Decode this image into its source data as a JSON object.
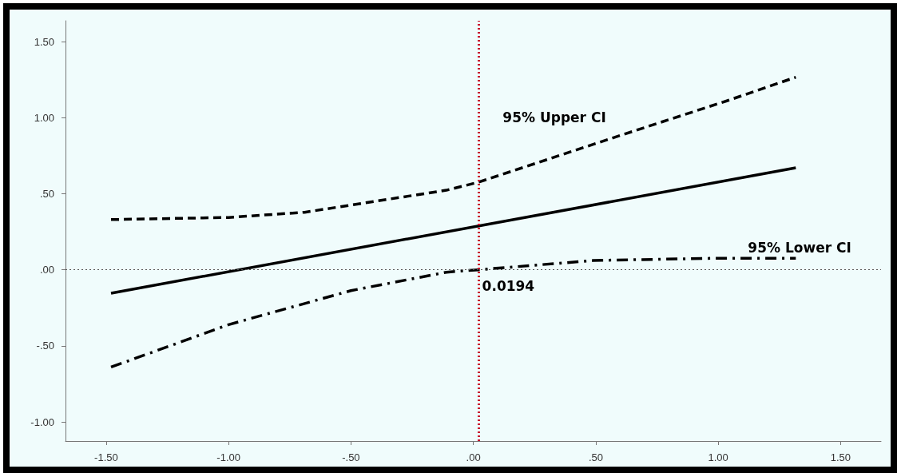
{
  "chart_data": {
    "type": "line",
    "x": [
      -1.48,
      1.317
    ],
    "series": [
      {
        "color": "#000000",
        "line_style": "solid",
        "values": [
          -0.154,
          0.67
        ]
      },
      {
        "name": "95% Upper CI",
        "color": "#000000",
        "line_style": "dashed",
        "x": [
          -1.48,
          -1.0,
          -0.689,
          -0.11,
          0.019,
          0.609,
          1.04,
          1.317
        ],
        "values": [
          0.33,
          0.344,
          0.378,
          0.523,
          0.575,
          0.888,
          1.113,
          1.266
        ]
      },
      {
        "name": "95% Lower CI",
        "color": "#000000",
        "line_style": "dashdot",
        "x": [
          -1.48,
          -1.0,
          -0.5,
          -0.11,
          0.0194,
          0.489,
          0.969,
          1.317
        ],
        "values": [
          -0.64,
          -0.361,
          -0.137,
          -0.016,
          0.0,
          0.061,
          0.075,
          0.075
        ]
      }
    ],
    "xlim": [
      -1.666,
      1.665
    ],
    "ylim": [
      -1.126,
      1.637
    ],
    "xticks": [
      {
        "value": -1.5,
        "label": "-1.50"
      },
      {
        "value": -1.0,
        "label": "-1.00"
      },
      {
        "value": -0.5,
        "label": "-.50"
      },
      {
        "value": 0,
        "label": ".00"
      },
      {
        "value": 0.5,
        "label": ".50"
      },
      {
        "value": 1.0,
        "label": "1.00"
      },
      {
        "value": 1.5,
        "label": "1.50"
      }
    ],
    "yticks": [
      {
        "value": -1.0,
        "label": "-1.00"
      },
      {
        "value": -0.5,
        "label": "-.50"
      },
      {
        "value": 0,
        "label": ".00"
      },
      {
        "value": 0.5,
        "label": ".50"
      },
      {
        "value": 1.0,
        "label": "1.00"
      },
      {
        "value": 1.5,
        "label": "1.50"
      }
    ],
    "ref_lines": [
      {
        "axis": "x",
        "value": 0.0194,
        "label": "0.0194",
        "color": "#c8102e",
        "line_style": "dotted"
      },
      {
        "axis": "y",
        "value": 0,
        "color": "#555555",
        "line_style": "dotted"
      }
    ],
    "grid": false,
    "legend": false,
    "marker": "none"
  }
}
